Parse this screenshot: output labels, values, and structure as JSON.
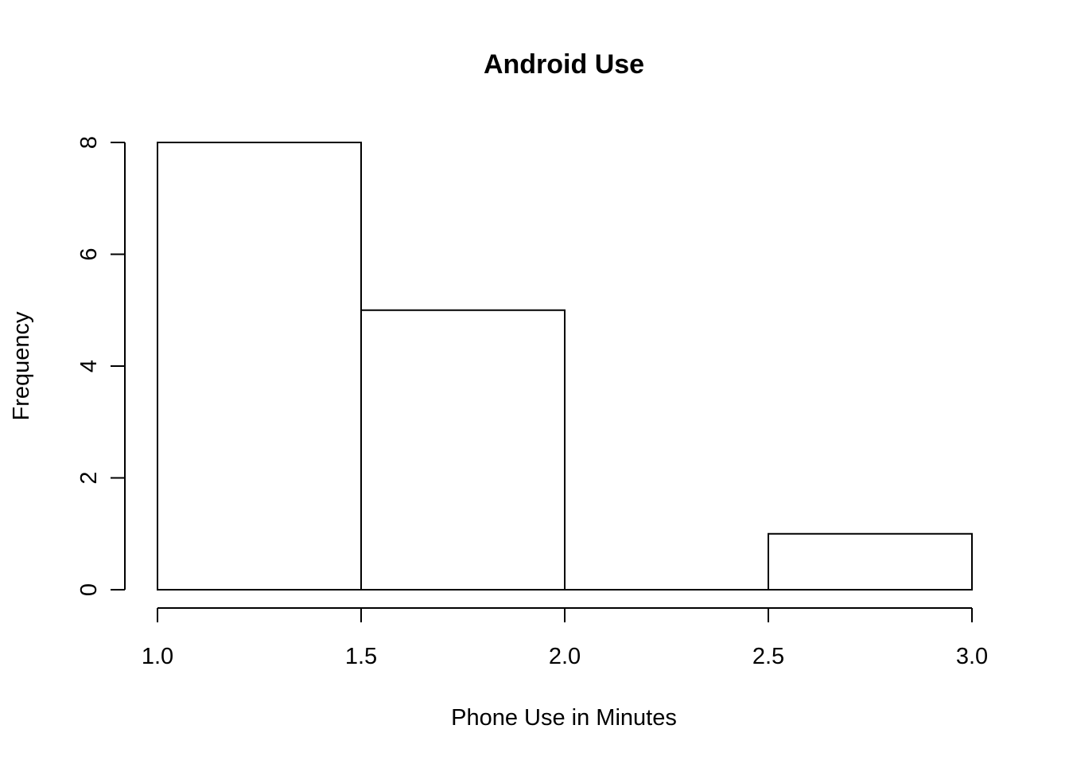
{
  "chart_data": {
    "type": "bar",
    "title": "Android Use",
    "xlabel": "Phone Use in Minutes",
    "ylabel": "Frequency",
    "bins": [
      {
        "from": 1.0,
        "to": 1.5,
        "count": 8
      },
      {
        "from": 1.5,
        "to": 2.0,
        "count": 5
      },
      {
        "from": 2.0,
        "to": 2.5,
        "count": 0
      },
      {
        "from": 2.5,
        "to": 3.0,
        "count": 1
      }
    ],
    "xlim": [
      1.0,
      3.0
    ],
    "ylim": [
      0,
      8
    ],
    "x_ticks": [
      "1.0",
      "1.5",
      "2.0",
      "2.5",
      "3.0"
    ],
    "y_ticks": [
      "0",
      "2",
      "4",
      "6",
      "8"
    ],
    "grid": false,
    "colors": {
      "bar_fill": "#ffffff",
      "bar_stroke": "#000000",
      "background": "#ffffff"
    }
  }
}
